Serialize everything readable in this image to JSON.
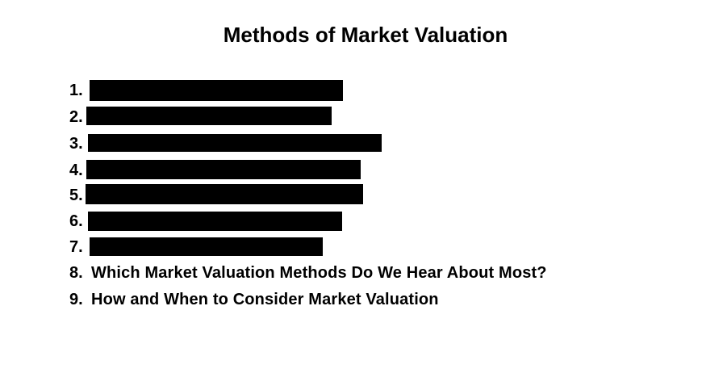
{
  "title": "Methods of Market Valuation",
  "items": [
    {
      "number": "1."
    },
    {
      "number": "2."
    },
    {
      "number": "3."
    },
    {
      "number": "4."
    },
    {
      "number": "5."
    },
    {
      "number": "6."
    },
    {
      "number": "7."
    },
    {
      "number": "8.",
      "text": "Which Market Valuation Methods Do We Hear About Most?"
    },
    {
      "number": "9.",
      "text": "How and When to Consider Market Valuation"
    }
  ]
}
